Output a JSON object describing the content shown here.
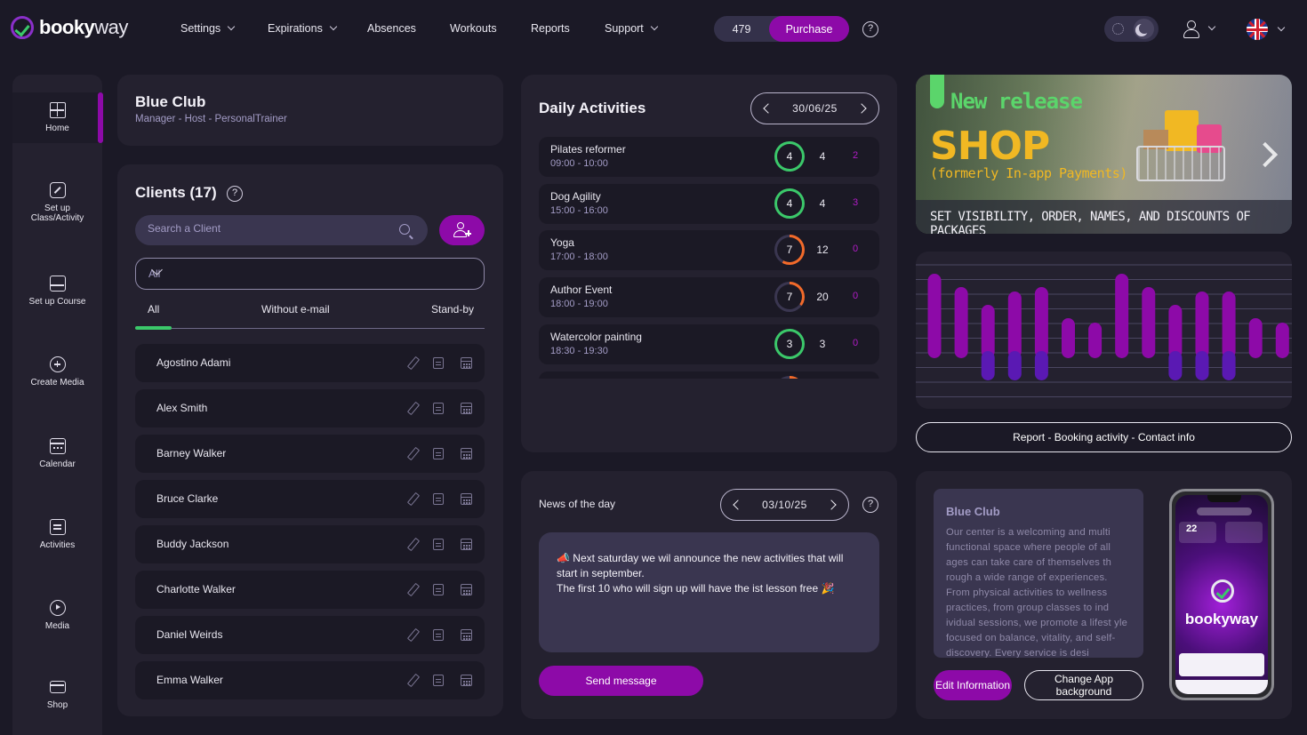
{
  "brand": {
    "bold": "booky",
    "light": "way"
  },
  "nav": [
    {
      "label": "Settings",
      "dropdown": true
    },
    {
      "label": "Expirations",
      "dropdown": true
    },
    {
      "label": "Absences",
      "dropdown": false
    },
    {
      "label": "Workouts",
      "dropdown": false
    },
    {
      "label": "Reports",
      "dropdown": false
    },
    {
      "label": "Support",
      "dropdown": true
    }
  ],
  "credits": {
    "count": "479",
    "purchase_label": "Purchase"
  },
  "help_symbol": "?",
  "sidebar": [
    {
      "label": "Home",
      "icon": "home-grid-icon",
      "active": true
    },
    {
      "label": "Set up Class/Activity",
      "icon": "edit-square-icon",
      "active": false
    },
    {
      "label": "Set up Course",
      "icon": "course-board-icon",
      "active": false
    },
    {
      "label": "Create Media",
      "icon": "plus-circle-icon",
      "active": false
    },
    {
      "label": "Calendar",
      "icon": "calendar-icon",
      "active": false
    },
    {
      "label": "Activities",
      "icon": "document-icon",
      "active": false
    },
    {
      "label": "Media",
      "icon": "play-circle-icon",
      "active": false
    },
    {
      "label": "Shop",
      "icon": "card-icon",
      "active": false
    }
  ],
  "club": {
    "name": "Blue Club",
    "roles": "Manager - Host - PersonalTrainer"
  },
  "clients": {
    "title": "Clients (17)",
    "search_placeholder": "Search a Client",
    "filter_value": "All",
    "tabs": [
      "All",
      "Without e-mail",
      "Stand-by"
    ],
    "list": [
      "Agostino Adami",
      "Alex Smith",
      "Barney Walker",
      "Bruce Clarke",
      "Buddy Jackson",
      "Charlotte Walker",
      "Daniel Weirds",
      "Emma Walker"
    ]
  },
  "daily_activities": {
    "title": "Daily Activities",
    "date": "30/06/25",
    "items": [
      {
        "name": "Pilates reformer",
        "time": "09:00 - 10:00",
        "booked": "4",
        "capacity": "4",
        "waiting": "2",
        "fill": 1.0,
        "status": "full"
      },
      {
        "name": "Dog Agility",
        "time": "15:00 - 16:00",
        "booked": "4",
        "capacity": "4",
        "waiting": "3",
        "fill": 1.0,
        "status": "full"
      },
      {
        "name": "Yoga",
        "time": "17:00 - 18:00",
        "booked": "7",
        "capacity": "12",
        "waiting": "0",
        "fill": 0.58,
        "status": "partial"
      },
      {
        "name": "Author Event",
        "time": "18:00 - 19:00",
        "booked": "7",
        "capacity": "20",
        "waiting": "0",
        "fill": 0.35,
        "status": "partial"
      },
      {
        "name": "Watercolor painting",
        "time": "18:30 - 19:30",
        "booked": "3",
        "capacity": "3",
        "waiting": "0",
        "fill": 1.0,
        "status": "full"
      }
    ]
  },
  "news": {
    "title": "News of the day",
    "date": "03/10/25",
    "message_line1": "📣 Next saturday we wil announce the new activities that will start in september.",
    "message_line2": "The first 10 who will sign up will have the ist lesson free 🎉",
    "send_label": "Send message"
  },
  "banner": {
    "tag": "New release",
    "headline": "SHOP",
    "subline": "(formerly In-app Payments)",
    "strip": "SET VISIBILITY, ORDER, NAMES, AND DISCOUNTS OF PACKAGES"
  },
  "booking_chart": {
    "colors": {
      "top": "#8d0aa8",
      "bottom": "#5a19b3"
    },
    "values": [
      {
        "top": 0.95,
        "bottom": 0.0
      },
      {
        "top": 0.8,
        "bottom": 0.0
      },
      {
        "top": 0.6,
        "bottom": 0.25
      },
      {
        "top": 0.75,
        "bottom": 0.25
      },
      {
        "top": 0.8,
        "bottom": 0.25
      },
      {
        "top": 0.45,
        "bottom": 0.0
      },
      {
        "top": 0.4,
        "bottom": 0.0
      },
      {
        "top": 0.95,
        "bottom": 0.0
      },
      {
        "top": 0.8,
        "bottom": 0.0
      },
      {
        "top": 0.6,
        "bottom": 0.25
      },
      {
        "top": 0.75,
        "bottom": 0.25
      },
      {
        "top": 0.75,
        "bottom": 0.25
      },
      {
        "top": 0.45,
        "bottom": 0.0
      },
      {
        "top": 0.4,
        "bottom": 0.0
      }
    ]
  },
  "report_label": "Report - Booking activity - Contact info",
  "club_info": {
    "name": "Blue Club",
    "description": "Our center is a welcoming and multi functional space where people of all ages can take care of themselves th rough a wide range of experiences. From physical activities to wellness practices, from group classes to ind ividual sessions, we promote a lifest yle focused on balance, vitality, and self-discovery. Every service is desi",
    "edit_label": "Edit Information",
    "background_label": "Change App background"
  },
  "phone_preview": {
    "day": "22",
    "brand": "bookyway"
  },
  "colors": {
    "accent": "#8d0aa8",
    "success": "#3bc86a",
    "warning": "#f26a2a",
    "bg": "#1b1926",
    "panel": "#24212f"
  }
}
